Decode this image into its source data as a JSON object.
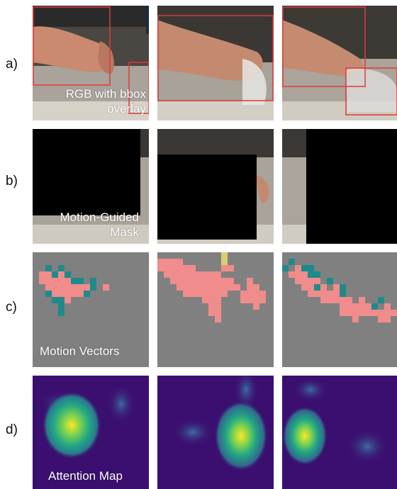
{
  "rows": [
    {
      "label": "a)",
      "caption_lines": [
        "RGB with bbox",
        "overlay"
      ]
    },
    {
      "label": "b)",
      "caption_lines": [
        "Motion-Guided",
        "Mask"
      ]
    },
    {
      "label": "c)",
      "caption_lines": [
        "Motion Vectors"
      ]
    },
    {
      "label": "d)",
      "caption_lines": [
        "Attention Map"
      ]
    }
  ],
  "colors": {
    "bbox": "#e03a3a",
    "mask": "#000000",
    "motion_background": "#808080",
    "motion_salmon": "#f08c8c",
    "motion_teal": "#1f8a8a",
    "motion_yellow": "#d8d070",
    "attention_background": "#3b0f6f",
    "attention_hot": "#fde725"
  }
}
